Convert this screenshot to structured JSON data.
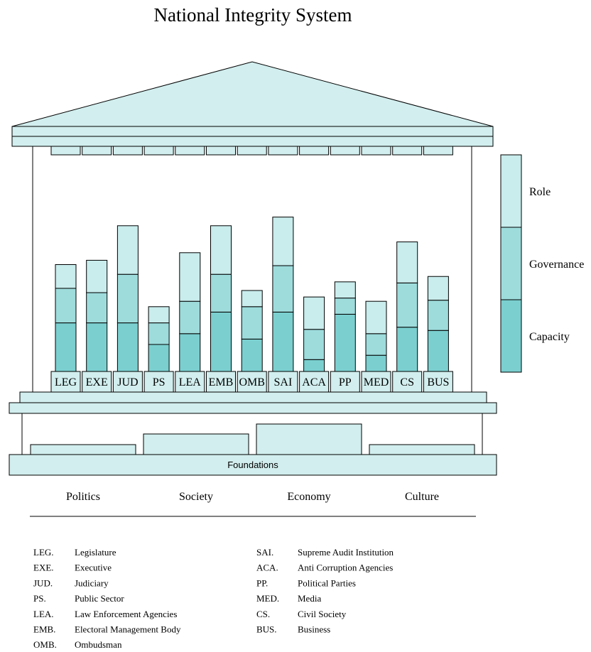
{
  "chart_data": {
    "type": "bar",
    "title": "National Integrity System",
    "categories": [
      "LEG",
      "EXE",
      "JUD",
      "PS",
      "LEA",
      "EMB",
      "OMB",
      "SAI",
      "ACA",
      "PP",
      "MED",
      "CS",
      "BUS"
    ],
    "series": [
      {
        "name": "Capacity",
        "values": [
          22.5,
          22.5,
          22.5,
          12.5,
          17.5,
          27.5,
          15,
          27.5,
          5.5,
          26.5,
          7.5,
          20.5,
          19
        ]
      },
      {
        "name": "Governance",
        "values": [
          16,
          14,
          22.5,
          10,
          15,
          17.5,
          15,
          21.5,
          14,
          7.5,
          10,
          20.5,
          14
        ]
      },
      {
        "name": "Role",
        "values": [
          11,
          15,
          22.5,
          7.5,
          22.5,
          22.5,
          7.5,
          22.5,
          15,
          7.5,
          15,
          19,
          11
        ]
      }
    ],
    "stack_order": [
      "Capacity",
      "Governance",
      "Role"
    ],
    "legend_placement": "right",
    "colors": {
      "Capacity": "#7bcfcf",
      "Governance": "#9edcdc",
      "Role": "#c9ecec",
      "structure": "#d2eeee"
    },
    "foundations": {
      "label": "Foundations",
      "items": [
        "Politics",
        "Society",
        "Economy",
        "Culture"
      ]
    },
    "glossary": [
      {
        "abbr": "LEG.",
        "name": "Legislature"
      },
      {
        "abbr": "EXE.",
        "name": "Executive"
      },
      {
        "abbr": "JUD.",
        "name": "Judiciary"
      },
      {
        "abbr": "PS.",
        "name": "Public Sector"
      },
      {
        "abbr": "LEA.",
        "name": "Law Enforcement Agencies"
      },
      {
        "abbr": "EMB.",
        "name": "Electoral Management Body"
      },
      {
        "abbr": "OMB.",
        "name": "Ombudsman"
      },
      {
        "abbr": "SAI.",
        "name": "Supreme Audit Institution"
      },
      {
        "abbr": "ACA.",
        "name": "Anti Corruption Agencies"
      },
      {
        "abbr": "PP.",
        "name": "Political Parties"
      },
      {
        "abbr": "MED.",
        "name": "Media"
      },
      {
        "abbr": "CS.",
        "name": "Civil Society"
      },
      {
        "abbr": "BUS.",
        "name": "Business"
      }
    ],
    "grid": false
  }
}
